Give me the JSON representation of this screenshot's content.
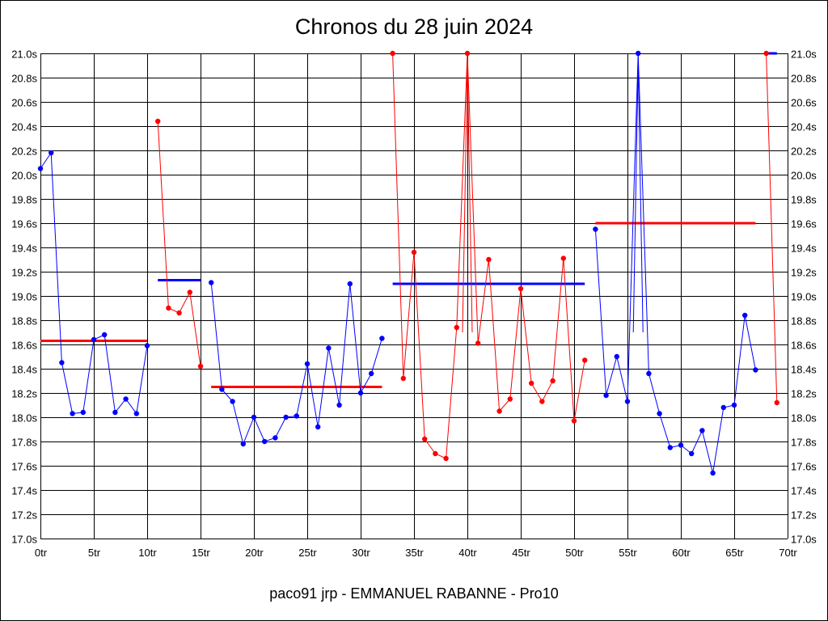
{
  "chart_data": {
    "type": "line",
    "title": "Chronos du 28 juin 2024",
    "caption": "paco91 jrp - EMMANUEL RABANNE - Pro10",
    "x_tick_labels": [
      "0tr",
      "5tr",
      "10tr",
      "15tr",
      "20tr",
      "25tr",
      "30tr",
      "35tr",
      "40tr",
      "45tr",
      "50tr",
      "55tr",
      "60tr",
      "65tr",
      "70tr"
    ],
    "y_tick_labels": [
      "17.0s",
      "17.2s",
      "17.4s",
      "17.6s",
      "17.8s",
      "18.0s",
      "18.2s",
      "18.4s",
      "18.6s",
      "18.8s",
      "19.0s",
      "19.2s",
      "19.4s",
      "19.6s",
      "19.8s",
      "20.0s",
      "20.2s",
      "20.4s",
      "20.6s",
      "20.8s",
      "21.0s"
    ],
    "xlim": [
      0,
      70
    ],
    "ylim": [
      17.0,
      21.0
    ],
    "grid": true,
    "colors": {
      "blue": "#0000ff",
      "red": "#ff0000",
      "grid": "#000000"
    },
    "segments": [
      {
        "color": "blue",
        "x": [
          0,
          1,
          2,
          3,
          4,
          5,
          6,
          7,
          8,
          9,
          10
        ],
        "y": [
          20.05,
          20.18,
          18.45,
          18.03,
          18.04,
          18.64,
          18.68,
          18.04,
          18.15,
          18.03,
          18.59
        ]
      },
      {
        "color": "red",
        "x": [
          11,
          12,
          13,
          14,
          15
        ],
        "y": [
          20.44,
          18.9,
          18.86,
          19.03,
          18.42
        ]
      },
      {
        "color": "blue",
        "x": [
          16,
          17,
          18,
          19,
          20,
          21,
          22,
          23,
          24,
          25,
          26,
          27,
          28,
          29,
          30,
          31,
          32
        ],
        "y": [
          19.11,
          18.23,
          18.13,
          17.78,
          18.0,
          17.8,
          17.83,
          18.0,
          18.01,
          18.44,
          17.92,
          18.57,
          18.1,
          19.1,
          18.2,
          18.36,
          18.65
        ]
      },
      {
        "color": "red",
        "x": [
          33,
          34,
          35,
          36,
          37,
          38,
          39,
          40,
          41,
          42,
          43,
          44,
          45,
          46,
          47,
          48,
          49,
          50,
          51
        ],
        "y": [
          21.0,
          18.32,
          19.36,
          17.82,
          17.7,
          17.66,
          18.74,
          21.0,
          18.61,
          19.3,
          18.05,
          18.15,
          19.06,
          18.28,
          18.13,
          18.3,
          19.31,
          17.97,
          18.47
        ]
      },
      {
        "color": "blue",
        "x": [
          52,
          53,
          54,
          55,
          56,
          57,
          58,
          59,
          60,
          61,
          62,
          63,
          64,
          65,
          66,
          67
        ],
        "y": [
          19.55,
          18.18,
          18.5,
          18.13,
          21.0,
          18.36,
          18.03,
          17.75,
          17.77,
          17.7,
          17.89,
          17.54,
          18.08,
          18.1,
          18.84,
          18.39
        ]
      },
      {
        "color": "red",
        "x": [
          68,
          69
        ],
        "y": [
          21.0,
          18.12
        ]
      }
    ],
    "peak_lines": [
      {
        "color": "red",
        "x": 40,
        "y": 20.92
      },
      {
        "color": "blue",
        "x": 56,
        "y": 20.92
      }
    ],
    "averages": [
      {
        "color": "red",
        "x_start": 0,
        "x_end": 10,
        "y": 18.63
      },
      {
        "color": "blue",
        "x_start": 11,
        "x_end": 15,
        "y": 19.13
      },
      {
        "color": "red",
        "x_start": 16,
        "x_end": 32,
        "y": 18.25
      },
      {
        "color": "blue",
        "x_start": 33,
        "x_end": 51,
        "y": 19.1
      },
      {
        "color": "red",
        "x_start": 52,
        "x_end": 67,
        "y": 19.6
      },
      {
        "color": "blue",
        "x_start": 68,
        "x_end": 69,
        "y": 21.0
      }
    ]
  }
}
